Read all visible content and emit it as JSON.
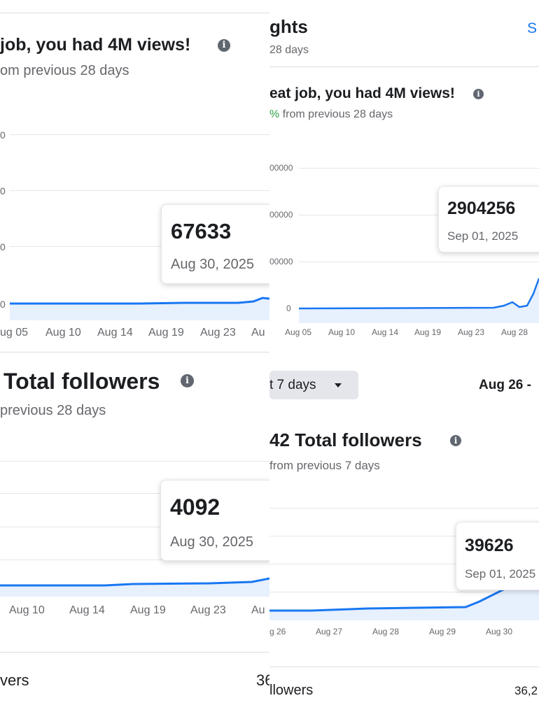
{
  "left": {
    "views_card": {
      "title": "job, you had 4M views!",
      "subtitle": "om previous 28 days",
      "info_icon": "info-icon",
      "y_axis_labels": [
        "0",
        "0",
        "0",
        "0"
      ],
      "x_axis_labels": [
        "ug 05",
        "Aug 10",
        "Aug 14",
        "Aug 19",
        "Aug 23",
        "Au"
      ],
      "tooltip": {
        "value": "67633",
        "date": "Aug 30, 2025"
      }
    },
    "followers_card": {
      "title": "Total followers",
      "subtitle": "previous 28 days",
      "info_icon": "info-icon",
      "x_axis_labels": [
        "Aug 10",
        "Aug 14",
        "Aug 19",
        "Aug 23",
        "Au"
      ],
      "tooltip": {
        "value": "4092",
        "date": "Aug 30, 2025"
      }
    },
    "bottom_row": {
      "label": "vers",
      "value": "36"
    }
  },
  "right": {
    "header": {
      "title": "ghts",
      "subtitle": "28 days",
      "link": "S"
    },
    "views_card": {
      "title": "eat job, you had 4M views!",
      "subtitle_prefix": "%",
      "subtitle": " from previous 28 days",
      "info_icon": "info-icon",
      "y_axis_labels": [
        "00000",
        "00000",
        "00000",
        "0"
      ],
      "x_axis_labels": [
        "Aug 05",
        "Aug 10",
        "Aug 14",
        "Aug 19",
        "Aug 23",
        "Aug 28"
      ],
      "tooltip": {
        "value": "2904256",
        "date": "Sep 01, 2025"
      }
    },
    "range_dropdown": {
      "label": "t 7 days",
      "icon": "caret-down-icon"
    },
    "date_range": "Aug 26 -",
    "followers_card": {
      "title": "42 Total followers",
      "subtitle": "from previous 7 days",
      "info_icon": "info-icon",
      "x_axis_labels": [
        "g 26",
        "Aug 27",
        "Aug 28",
        "Aug 29",
        "Aug 30"
      ],
      "tooltip": {
        "value": "39626",
        "date": "Sep 01, 2025"
      }
    },
    "bottom_row": {
      "label": "llowers",
      "value": "36,2"
    }
  },
  "colors": {
    "line": "#1877f2",
    "fill": "#e7f0fd",
    "link": "#1877f2",
    "positive": "#31a24c"
  }
}
